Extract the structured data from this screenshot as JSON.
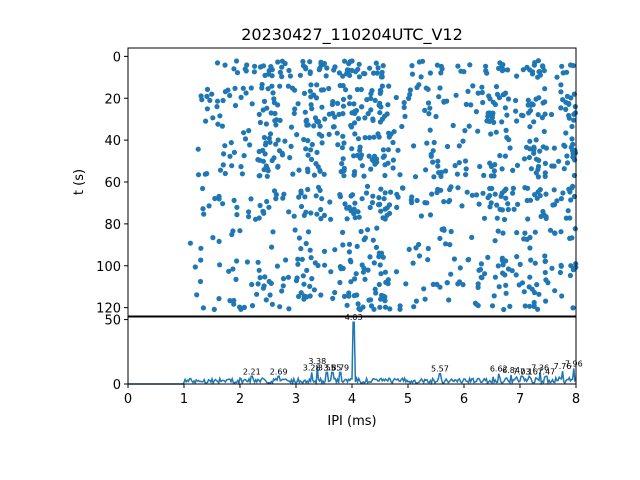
{
  "colors": {
    "series": "#1f77b4",
    "axis": "#000000",
    "background": "#ffffff"
  },
  "chart_data": [
    {
      "type": "scatter",
      "title": "20230427_110204UTC_V12",
      "xlabel": "",
      "ylabel": "t (s)",
      "xlim": [
        0,
        8
      ],
      "ylim": [
        124,
        -4
      ],
      "y_inverted": true,
      "grid": false,
      "yticks": [
        0,
        20,
        40,
        60,
        80,
        100,
        120
      ],
      "point_count_estimate": 1000,
      "time_bands": [
        {
          "t_min": 2,
          "t_max": 10,
          "x_min": 1.4,
          "x_max": 8.0,
          "n": 120
        },
        {
          "t_min": 13,
          "t_max": 34,
          "x_min": 1.3,
          "x_max": 8.0,
          "n": 230
        },
        {
          "t_min": 35,
          "t_max": 58,
          "x_min": 1.1,
          "x_max": 8.0,
          "n": 220
        },
        {
          "t_min": 62,
          "t_max": 78,
          "x_min": 1.2,
          "x_max": 8.0,
          "n": 170
        },
        {
          "t_min": 82,
          "t_max": 94,
          "x_min": 1.1,
          "x_max": 8.0,
          "n": 60
        },
        {
          "t_min": 95,
          "t_max": 121,
          "x_min": 1.1,
          "x_max": 8.0,
          "n": 210
        }
      ],
      "dense_columns_ms": [
        2.5,
        3.3,
        4.0,
        4.45,
        6.6,
        7.3,
        7.9
      ]
    },
    {
      "type": "line",
      "xlabel": "IPI (ms)",
      "ylabel": "",
      "xlim": [
        0,
        8
      ],
      "ylim": [
        0,
        52
      ],
      "xticks": [
        0,
        1,
        2,
        3,
        4,
        5,
        6,
        7,
        8
      ],
      "yticks": [
        0,
        50
      ],
      "grid": false,
      "baseline_noise_max": 5,
      "signal_start_ms": 1.0,
      "peaks": [
        {
          "x": 2.21,
          "y": 6,
          "label": "2.21"
        },
        {
          "x": 2.69,
          "y": 6,
          "label": "2.69"
        },
        {
          "x": 3.28,
          "y": 9,
          "label": "3.28"
        },
        {
          "x": 3.38,
          "y": 14,
          "label": "3.38"
        },
        {
          "x": 3.55,
          "y": 9,
          "label": "3.55"
        },
        {
          "x": 3.65,
          "y": 9,
          "label": "3.65"
        },
        {
          "x": 3.79,
          "y": 9,
          "label": "3.79"
        },
        {
          "x": 4.03,
          "y": 48,
          "label": "4.03"
        },
        {
          "x": 5.57,
          "y": 8,
          "label": "5.57"
        },
        {
          "x": 6.62,
          "y": 8,
          "label": "6.62"
        },
        {
          "x": 6.84,
          "y": 7,
          "label": "6.84"
        },
        {
          "x": 7.03,
          "y": 6,
          "label": "7.03"
        },
        {
          "x": 7.16,
          "y": 6,
          "label": "7.16"
        },
        {
          "x": 7.36,
          "y": 9,
          "label": "7.36"
        },
        {
          "x": 7.47,
          "y": 6,
          "label": "7.47"
        },
        {
          "x": 7.76,
          "y": 10,
          "label": "7.76"
        },
        {
          "x": 7.96,
          "y": 12,
          "label": "7.96"
        }
      ]
    }
  ]
}
